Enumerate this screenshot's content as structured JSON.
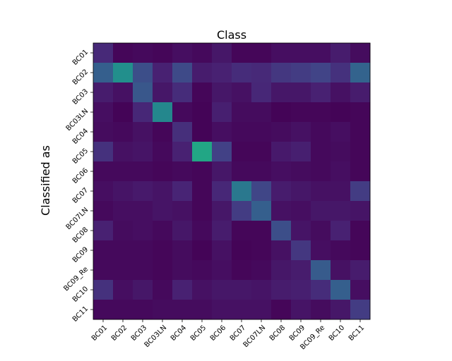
{
  "chart_data": {
    "type": "heatmap",
    "title": "Class",
    "xlabel": "",
    "ylabel": "Classified as",
    "colormap": "viridis",
    "value_range": [
      0,
      1
    ],
    "grid": false,
    "x_categories": [
      "BC01",
      "BC02",
      "BC03",
      "BC03LN",
      "BC04",
      "BC05",
      "BC06",
      "BC07",
      "BC07LN",
      "BC08",
      "BC09",
      "BC09_Re",
      "BC10",
      "BC11"
    ],
    "y_categories": [
      "BC01",
      "BC02",
      "BC03",
      "BC03LN",
      "BC04",
      "BC05",
      "BC06",
      "BC07",
      "BC07LN",
      "BC08",
      "BC09",
      "BC09_Re",
      "BC10",
      "BC11"
    ],
    "values": [
      [
        0.15,
        0.02,
        0.03,
        0.02,
        0.05,
        0.03,
        0.08,
        0.02,
        0.02,
        0.05,
        0.05,
        0.05,
        0.1,
        0.04
      ],
      [
        0.38,
        0.62,
        0.3,
        0.12,
        0.28,
        0.1,
        0.12,
        0.16,
        0.15,
        0.2,
        0.22,
        0.25,
        0.18,
        0.4
      ],
      [
        0.1,
        0.06,
        0.34,
        0.08,
        0.16,
        0.02,
        0.08,
        0.06,
        0.14,
        0.08,
        0.08,
        0.12,
        0.06,
        0.1
      ],
      [
        0.05,
        0.01,
        0.14,
        0.58,
        0.03,
        0.01,
        0.11,
        0.04,
        0.04,
        0.01,
        0.02,
        0.02,
        0.01,
        0.02
      ],
      [
        0.04,
        0.03,
        0.06,
        0.02,
        0.17,
        0.01,
        0.05,
        0.03,
        0.03,
        0.04,
        0.06,
        0.03,
        0.05,
        0.02
      ],
      [
        0.18,
        0.06,
        0.07,
        0.03,
        0.12,
        0.74,
        0.24,
        0.02,
        0.02,
        0.09,
        0.11,
        0.03,
        0.04,
        0.02
      ],
      [
        0.03,
        0.03,
        0.03,
        0.02,
        0.03,
        0.02,
        0.08,
        0.03,
        0.03,
        0.05,
        0.04,
        0.03,
        0.05,
        0.02
      ],
      [
        0.05,
        0.07,
        0.09,
        0.07,
        0.13,
        0.02,
        0.14,
        0.5,
        0.26,
        0.1,
        0.08,
        0.06,
        0.06,
        0.22
      ],
      [
        0.03,
        0.05,
        0.05,
        0.07,
        0.06,
        0.02,
        0.08,
        0.22,
        0.38,
        0.06,
        0.05,
        0.08,
        0.08,
        0.07
      ],
      [
        0.12,
        0.04,
        0.05,
        0.03,
        0.08,
        0.03,
        0.1,
        0.02,
        0.02,
        0.3,
        0.07,
        0.04,
        0.12,
        0.02
      ],
      [
        0.03,
        0.03,
        0.03,
        0.02,
        0.04,
        0.01,
        0.06,
        0.01,
        0.02,
        0.06,
        0.2,
        0.05,
        0.03,
        0.02
      ],
      [
        0.03,
        0.03,
        0.03,
        0.02,
        0.04,
        0.03,
        0.05,
        0.02,
        0.03,
        0.08,
        0.1,
        0.36,
        0.06,
        0.1
      ],
      [
        0.18,
        0.05,
        0.08,
        0.03,
        0.12,
        0.06,
        0.08,
        0.08,
        0.07,
        0.1,
        0.11,
        0.16,
        0.38,
        0.05
      ],
      [
        0.03,
        0.03,
        0.03,
        0.04,
        0.04,
        0.04,
        0.06,
        0.06,
        0.06,
        0.02,
        0.07,
        0.04,
        0.08,
        0.22
      ]
    ]
  }
}
